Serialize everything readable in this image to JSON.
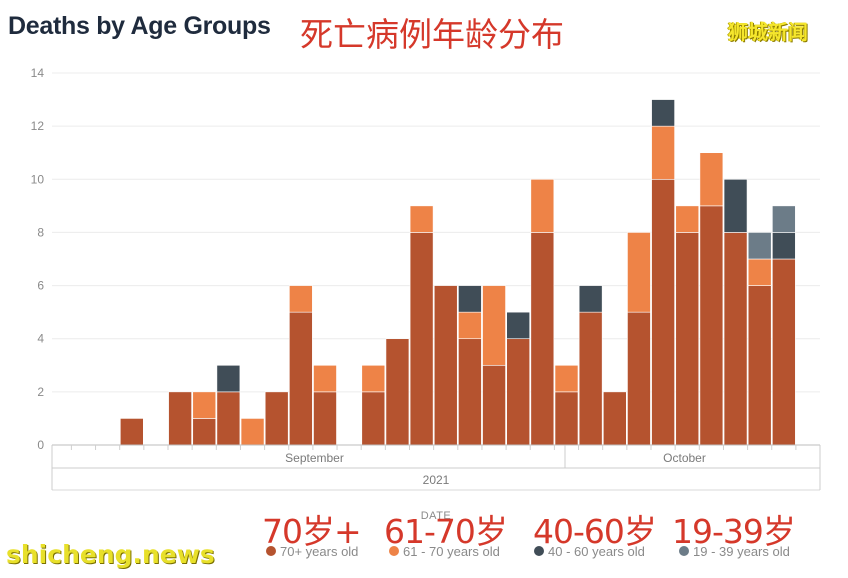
{
  "header": {
    "title_en": "Deaths by Age Groups",
    "title_zh": "死亡病例年龄分布",
    "brand_top": "狮城新闻"
  },
  "footer": {
    "brand_bottom": "shicheng.news"
  },
  "legend_zh": [
    "70岁+",
    "61-70岁",
    "40-60岁",
    "19-39岁"
  ],
  "colors": {
    "age_70_plus": "#b5532f",
    "age_61_70": "#ee8347",
    "age_40_60": "#404d57",
    "age_19_39": "#6c7c88"
  },
  "chart_data": {
    "type": "bar",
    "stacked": true,
    "xlabel": "DATE",
    "ylabel": "",
    "ylim": [
      0,
      14
    ],
    "yticks": [
      0,
      2,
      4,
      6,
      8,
      10,
      12,
      14
    ],
    "grid": true,
    "legend_position": "bottom",
    "month_labels": [
      "September",
      "October"
    ],
    "year_label": "2021",
    "categories": [
      "2021-09-01",
      "2021-09-02",
      "2021-09-03",
      "2021-09-04",
      "2021-09-05",
      "2021-09-06",
      "2021-09-07",
      "2021-09-08",
      "2021-09-09",
      "2021-09-10",
      "2021-09-11",
      "2021-09-12",
      "2021-09-13",
      "2021-09-14",
      "2021-09-15",
      "2021-09-16",
      "2021-09-17",
      "2021-09-18",
      "2021-09-19",
      "2021-09-20",
      "2021-09-21",
      "2021-09-22",
      "2021-09-23",
      "2021-09-24",
      "2021-09-25",
      "2021-09-26",
      "2021-09-27",
      "2021-09-28",
      "2021-09-29",
      "2021-09-30",
      "2021-10-01",
      "2021-10-02",
      "2021-10-03",
      "2021-10-04",
      "2021-10-05",
      "2021-10-06",
      "2021-10-07",
      "2021-10-08",
      "2021-10-09",
      "2021-10-10",
      "2021-10-11",
      "2021-10-12",
      "2021-10-13",
      "2021-10-14",
      "2021-10-15",
      "2021-10-16",
      "2021-10-17",
      "2021-10-18",
      "2021-10-19",
      "2021-10-20",
      "2021-10-21",
      "2021-10-22",
      "2021-10-23",
      "2021-10-24",
      "2021-10-25",
      "2021-10-26",
      "2021-10-27",
      "2021-10-28",
      "2021-10-29",
      "2021-10-30",
      "2021-10-31"
    ],
    "series": [
      {
        "name": "70+ years old",
        "values": [
          0,
          0,
          1,
          0,
          2,
          1,
          2,
          0,
          2,
          5,
          2,
          0,
          2,
          4,
          8,
          6,
          4,
          3,
          4,
          8,
          2,
          5,
          2,
          5,
          10,
          8,
          9,
          8,
          6,
          7,
          0,
          0,
          0,
          0,
          0,
          0,
          0,
          0,
          0,
          0,
          0,
          0,
          0,
          0,
          0,
          0,
          0,
          0,
          0,
          0,
          0,
          0,
          0,
          0,
          0,
          0,
          0,
          0,
          0,
          0,
          0
        ]
      },
      {
        "name": "61 - 70 years old",
        "values": [
          0,
          0,
          0,
          0,
          0,
          1,
          0,
          1,
          0,
          1,
          1,
          0,
          1,
          0,
          1,
          0,
          1,
          3,
          0,
          2,
          1,
          0,
          0,
          3,
          2,
          1,
          2,
          0,
          1,
          0,
          0,
          0,
          0,
          0,
          0,
          0,
          0,
          0,
          0,
          0,
          0,
          0,
          0,
          0,
          0,
          0,
          0,
          0,
          0,
          0,
          0,
          0,
          0,
          0,
          0,
          0,
          0,
          0,
          0,
          0,
          0
        ]
      },
      {
        "name": "40 - 60 years old",
        "values": [
          0,
          0,
          0,
          0,
          0,
          0,
          1,
          0,
          0,
          0,
          0,
          0,
          0,
          0,
          0,
          0,
          1,
          0,
          1,
          0,
          0,
          1,
          0,
          0,
          1,
          0,
          0,
          2,
          0,
          1,
          0,
          0,
          0,
          0,
          0,
          0,
          0,
          0,
          0,
          0,
          0,
          0,
          0,
          0,
          0,
          0,
          0,
          0,
          0,
          0,
          0,
          0,
          0,
          0,
          0,
          0,
          0,
          0,
          0,
          0,
          0
        ]
      },
      {
        "name": "19 - 39 years old",
        "values": [
          0,
          0,
          0,
          0,
          0,
          0,
          0,
          0,
          0,
          0,
          0,
          0,
          0,
          0,
          0,
          0,
          0,
          0,
          0,
          0,
          0,
          0,
          0,
          0,
          0,
          0,
          0,
          0,
          1,
          1,
          0,
          0,
          0,
          0,
          0,
          0,
          0,
          0,
          0,
          0,
          0,
          0,
          0,
          0,
          0,
          0,
          0,
          0,
          0,
          0,
          0,
          0,
          0,
          0,
          0,
          0,
          0,
          0,
          0,
          0,
          0
        ]
      }
    ]
  }
}
